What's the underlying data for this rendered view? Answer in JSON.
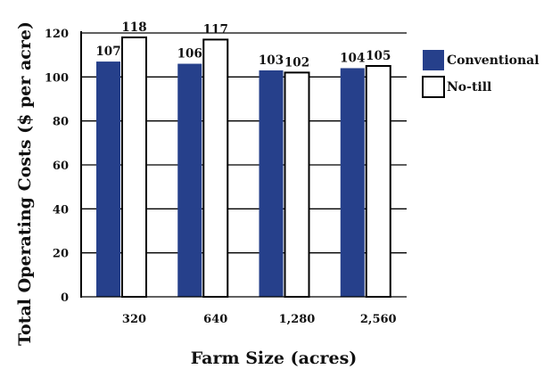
{
  "chart_data": {
    "type": "bar",
    "categories": [
      "320",
      "640",
      "1,280",
      "2,560"
    ],
    "series": [
      {
        "name": "Conventional",
        "values": [
          107,
          106,
          103,
          104
        ],
        "color": "#26408b"
      },
      {
        "name": "No-till",
        "values": [
          118,
          117,
          102,
          105
        ],
        "color": "#ffffff"
      }
    ],
    "xlabel": "Farm Size (acres)",
    "ylabel": "Total Operating Costs ($ per acre)",
    "ylim": [
      0,
      120
    ],
    "yticks": [
      0,
      20,
      40,
      60,
      80,
      100,
      120
    ],
    "grid": true,
    "legend_position": "right"
  }
}
